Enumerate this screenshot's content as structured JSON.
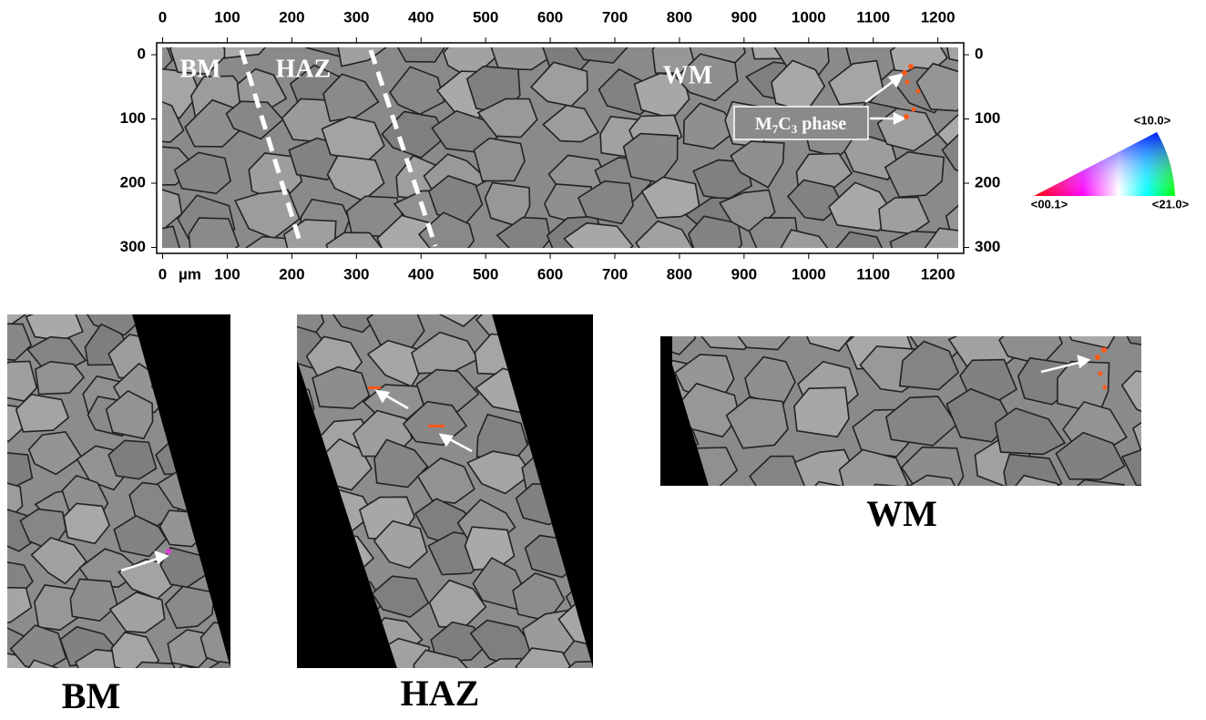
{
  "map": {
    "xlim": [
      -5,
      1240
    ],
    "xticks": [
      0,
      100,
      200,
      300,
      400,
      500,
      600,
      700,
      800,
      900,
      1000,
      1100,
      1200
    ],
    "ylim": [
      -10,
      305
    ],
    "yticks": [
      0,
      100,
      200,
      300
    ],
    "unit": "µm",
    "zone_labels": [
      "BM",
      "HAZ",
      "WM"
    ],
    "phase_label": [
      "M",
      "7",
      "C",
      "3",
      "phase"
    ]
  },
  "ipf_legend": {
    "top": "<10.0>",
    "left": "<00.1>",
    "right": "<21.0>"
  },
  "panels": [
    {
      "caption": "BM"
    },
    {
      "caption": "HAZ"
    },
    {
      "caption": "WM"
    }
  ]
}
